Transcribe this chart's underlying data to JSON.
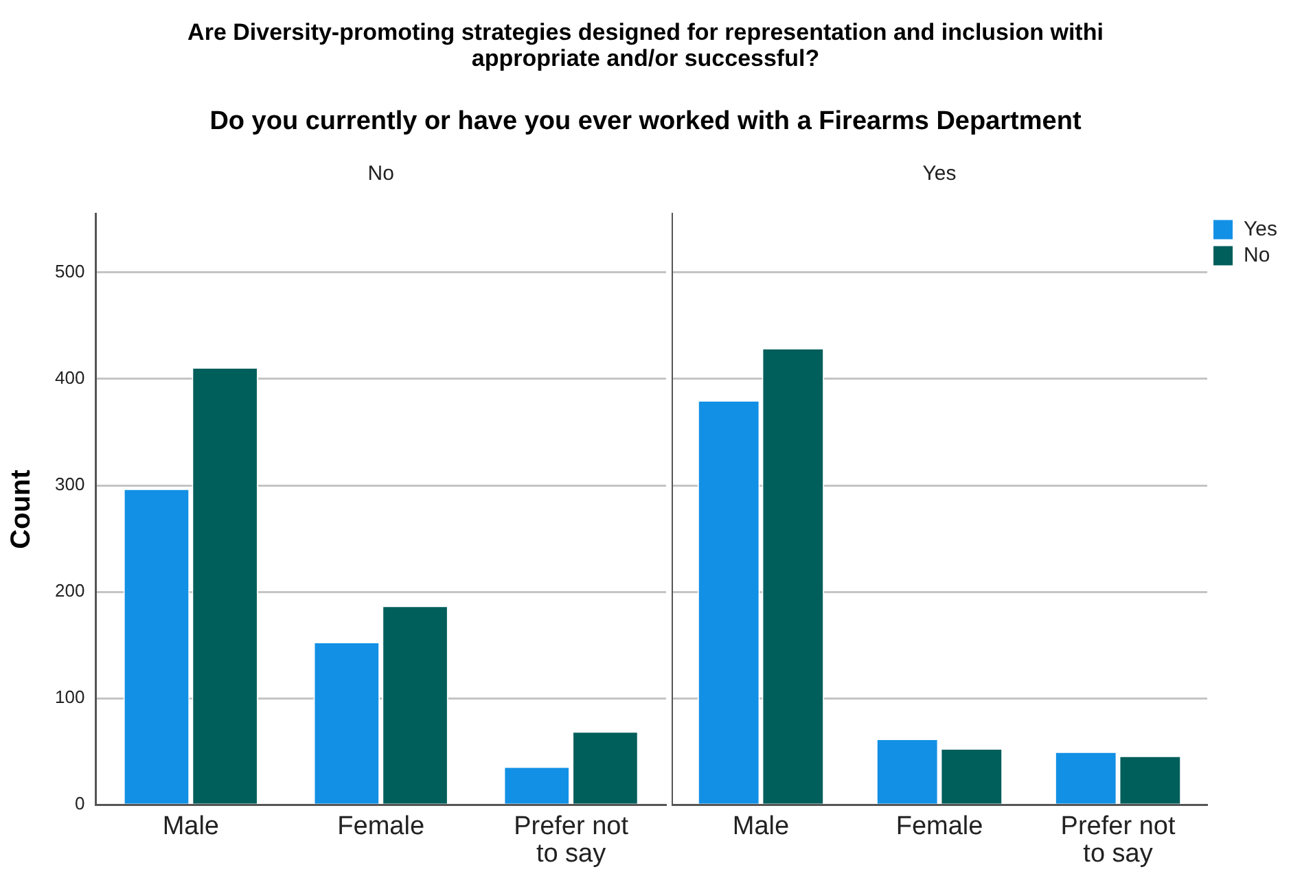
{
  "chart_data": [
    {
      "type": "bar",
      "title": "Are Diversity-promoting strategies designed for representation and  inclusion withi appropriate and/or successful?",
      "subtitle": "Do you currently or have you ever worked with a Firearms Department",
      "annotations": [
        "No"
      ],
      "ylabel": "Count",
      "categories": [
        "Male",
        "Female",
        "Prefer not to say"
      ],
      "series": [
        {
          "color": "#1290e5",
          "values": [
            297,
            153,
            36
          ]
        },
        {
          "color": "#005e5b",
          "values": [
            411,
            187,
            69
          ]
        }
      ],
      "ylim": [
        0,
        555
      ],
      "yticks": [
        0,
        100,
        200,
        300,
        400,
        500
      ],
      "grid": "y",
      "legend": false
    },
    {
      "type": "bar",
      "annotations": [
        "Yes"
      ],
      "categories": [
        "Male",
        "Female",
        "Prefer not to say"
      ],
      "series": [
        {
          "name": "Yes",
          "color": "#1290e5",
          "values": [
            380,
            62,
            50
          ]
        },
        {
          "name": "No",
          "color": "#005e5b",
          "values": [
            429,
            53,
            46
          ]
        }
      ],
      "ylim": [
        0,
        555
      ],
      "yticks": [
        0,
        100,
        200,
        300,
        400,
        500
      ],
      "grid": "y",
      "legend": "top right",
      "tick_labels": "x"
    }
  ]
}
